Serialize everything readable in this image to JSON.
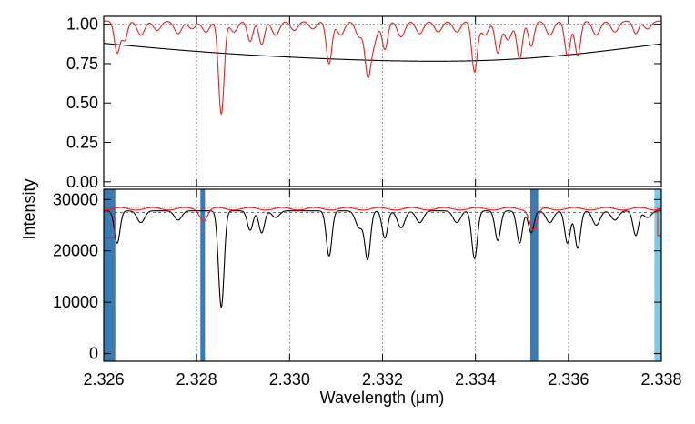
{
  "chart_data": {
    "type": "line",
    "xlabel": "Wavelength (μm)",
    "ylabel": "Intensity",
    "xlim": [
      2.326,
      2.338
    ],
    "x_ticks": [
      "2.326",
      "2.328",
      "2.330",
      "2.332",
      "2.334",
      "2.336",
      "2.338"
    ],
    "x_gridlines": [
      2.328,
      2.33,
      2.332,
      2.334,
      2.336
    ],
    "panels": [
      {
        "name": "top",
        "ylim": [
          -0.03,
          1.05
        ],
        "y_ticks": [
          "0.00",
          "0.25",
          "0.50",
          "0.75",
          "1.00"
        ],
        "series": [
          {
            "color": "#000000",
            "continuum": 1.0,
            "lines": [
              [
                2.3262,
                0.003,
                0.95
              ],
              [
                2.3285,
                0.003,
                0.93
              ],
              [
                2.3308,
                0.003,
                0.96
              ],
              [
                2.3317,
                0.003,
                0.95
              ],
              [
                2.334,
                0.003,
                0.95
              ],
              [
                2.3352,
                0.003,
                0.92
              ],
              [
                2.336,
                0.003,
                0.97
              ],
              [
                2.3378,
                0.003,
                0.98
              ]
            ]
          },
          {
            "color": "#e8201f",
            "continuum": 1.02,
            "lines": [
              [
                2.32629,
                6e-05,
                0.82
              ],
              [
                2.32645,
                6e-05,
                0.9
              ],
              [
                2.3268,
                8e-05,
                0.93
              ],
              [
                2.32715,
                8e-05,
                0.96
              ],
              [
                2.3276,
                8e-05,
                0.94
              ],
              [
                2.3279,
                8e-05,
                0.97
              ],
              [
                2.3282,
                8e-05,
                0.95
              ],
              [
                2.32853,
                6e-05,
                0.43
              ],
              [
                2.3288,
                8e-05,
                0.95
              ],
              [
                2.32915,
                6e-05,
                0.89
              ],
              [
                2.3294,
                6e-05,
                0.87
              ],
              [
                2.3297,
                8e-05,
                0.93
              ],
              [
                2.3301,
                8e-05,
                0.96
              ],
              [
                2.3305,
                8e-05,
                0.97
              ],
              [
                2.33085,
                6e-05,
                0.75
              ],
              [
                2.3311,
                8e-05,
                0.93
              ],
              [
                2.3315,
                8e-05,
                0.92
              ],
              [
                2.33168,
                6e-05,
                0.72
              ],
              [
                2.3318,
                8e-05,
                0.87
              ],
              [
                2.33205,
                6e-05,
                0.84
              ],
              [
                2.3324,
                8e-05,
                0.92
              ],
              [
                2.3328,
                8e-05,
                0.94
              ],
              [
                2.3332,
                8e-05,
                0.95
              ],
              [
                2.3336,
                8e-05,
                0.95
              ],
              [
                2.33398,
                6e-05,
                0.7
              ],
              [
                2.3342,
                8e-05,
                0.93
              ],
              [
                2.33448,
                6e-05,
                0.82
              ],
              [
                2.3347,
                8e-05,
                0.9
              ],
              [
                2.33495,
                6e-05,
                0.78
              ],
              [
                2.3352,
                6e-05,
                0.86
              ],
              [
                2.3356,
                8e-05,
                0.93
              ],
              [
                2.33598,
                6e-05,
                0.8
              ],
              [
                2.3362,
                6e-05,
                0.8
              ],
              [
                2.3366,
                8e-05,
                0.93
              ],
              [
                2.337,
                8e-05,
                0.95
              ],
              [
                2.33745,
                6e-05,
                0.94
              ],
              [
                2.3377,
                8e-05,
                0.97
              ]
            ]
          }
        ],
        "gridline_value": 1.0
      },
      {
        "name": "bottom",
        "ylim": [
          -1500,
          32000
        ],
        "y_ticks": [
          "0",
          "10000",
          "20000",
          "30000"
        ],
        "series": [
          {
            "color": "#000000",
            "continuum": 27800,
            "lines": [
              [
                2.32629,
                6e-05,
                21500
              ],
              [
                2.3268,
                8e-05,
                25500
              ],
              [
                2.3276,
                8e-05,
                26000
              ],
              [
                2.32853,
                6e-05,
                9000
              ],
              [
                2.32915,
                6e-05,
                24000
              ],
              [
                2.3294,
                6e-05,
                23500
              ],
              [
                2.3297,
                8e-05,
                26500
              ],
              [
                2.33085,
                6e-05,
                19000
              ],
              [
                2.3315,
                8e-05,
                24500
              ],
              [
                2.33168,
                6e-05,
                18500
              ],
              [
                2.33205,
                6e-05,
                22500
              ],
              [
                2.3324,
                8e-05,
                24500
              ],
              [
                2.3328,
                8e-05,
                25500
              ],
              [
                2.3336,
                8e-05,
                25500
              ],
              [
                2.33398,
                6e-05,
                18500
              ],
              [
                2.33448,
                6e-05,
                22000
              ],
              [
                2.33495,
                6e-05,
                21500
              ],
              [
                2.3352,
                6e-05,
                23500
              ],
              [
                2.3356,
                8e-05,
                25500
              ],
              [
                2.33598,
                6e-05,
                21500
              ],
              [
                2.3362,
                6e-05,
                20500
              ],
              [
                2.3366,
                8e-05,
                25000
              ],
              [
                2.337,
                8e-05,
                26000
              ],
              [
                2.33745,
                6e-05,
                23000
              ],
              [
                2.3377,
                8e-05,
                26500
              ]
            ]
          },
          {
            "color": "#e8201f",
            "continuum": 28200,
            "edges": [
              [
                2.326,
                22500
              ],
              [
                2.338,
                23000
              ]
            ],
            "dips": [
              [
                2.32815,
                26000
              ],
              [
                2.33525,
                24000
              ]
            ]
          }
        ],
        "dashed_levels": [
          27500,
          28500
        ],
        "shaded_bands": [
          {
            "x0": 2.326,
            "x1": 2.32625,
            "color": "#3b7bb4"
          },
          {
            "x0": 2.32808,
            "x1": 2.32818,
            "color": "#3b7bb4"
          },
          {
            "x0": 2.33518,
            "x1": 2.33535,
            "color": "#3b7bb4"
          },
          {
            "x0": 2.33785,
            "x1": 2.338,
            "color": "#7ccbe6"
          }
        ]
      }
    ]
  }
}
